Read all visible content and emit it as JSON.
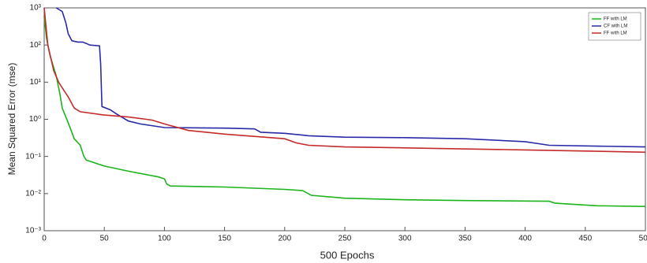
{
  "chart_data": {
    "type": "line",
    "log_y": true,
    "x_label": "500 Epochs",
    "y_label": "Mean Squared Error (mse)",
    "xlim": [
      0,
      500
    ],
    "xticks": [
      0,
      50,
      100,
      150,
      200,
      250,
      300,
      350,
      400,
      450,
      500
    ],
    "ylim": [
      0.001,
      1000
    ],
    "yticks": [
      {
        "value": 0.001,
        "label": "10⁻³"
      },
      {
        "value": 0.01,
        "label": "10⁻²"
      },
      {
        "value": 0.1,
        "label": "10⁻¹"
      },
      {
        "value": 1,
        "label": "10⁰"
      },
      {
        "value": 10,
        "label": "10¹"
      },
      {
        "value": 100,
        "label": "10²"
      },
      {
        "value": 1000,
        "label": "10³"
      }
    ],
    "legend": "top-right",
    "series": [
      {
        "name": "FF with LM",
        "color": "#1db31d",
        "x": [
          0,
          2,
          5,
          10,
          13,
          15,
          20,
          25,
          30,
          33,
          35,
          50,
          70,
          95,
          100,
          102,
          105,
          150,
          200,
          215,
          222,
          250,
          300,
          350,
          420,
          425,
          460,
          500
        ],
        "values": [
          600,
          150,
          50,
          15,
          5,
          2,
          0.8,
          0.3,
          0.2,
          0.1,
          0.08,
          0.055,
          0.04,
          0.028,
          0.025,
          0.018,
          0.016,
          0.015,
          0.013,
          0.012,
          0.009,
          0.0075,
          0.0068,
          0.0065,
          0.0062,
          0.0055,
          0.0047,
          0.0045
        ]
      },
      {
        "name": "CF with LM",
        "color": "#2a2aa8",
        "x": [
          10,
          15,
          18,
          20,
          23,
          28,
          32,
          35,
          38,
          46,
          47,
          48,
          55,
          60,
          70,
          80,
          100,
          150,
          175,
          180,
          200,
          220,
          250,
          300,
          350,
          400,
          420,
          500
        ],
        "values": [
          1000,
          800,
          400,
          200,
          130,
          120,
          120,
          110,
          100,
          95,
          30,
          2.2,
          1.8,
          1.4,
          0.9,
          0.75,
          0.6,
          0.58,
          0.55,
          0.45,
          0.42,
          0.36,
          0.33,
          0.32,
          0.3,
          0.25,
          0.2,
          0.18
        ]
      },
      {
        "name": "FF with LM",
        "color": "#c42a2a",
        "x": [
          0,
          3,
          8,
          12,
          15,
          20,
          25,
          30,
          50,
          70,
          85,
          90,
          100,
          120,
          150,
          200,
          210,
          220,
          250,
          300,
          400,
          450,
          500
        ],
        "values": [
          1000,
          100,
          20,
          10,
          7,
          4,
          2,
          1.6,
          1.3,
          1.15,
          1.0,
          0.95,
          0.75,
          0.5,
          0.4,
          0.3,
          0.23,
          0.2,
          0.18,
          0.17,
          0.15,
          0.14,
          0.13
        ]
      }
    ]
  }
}
